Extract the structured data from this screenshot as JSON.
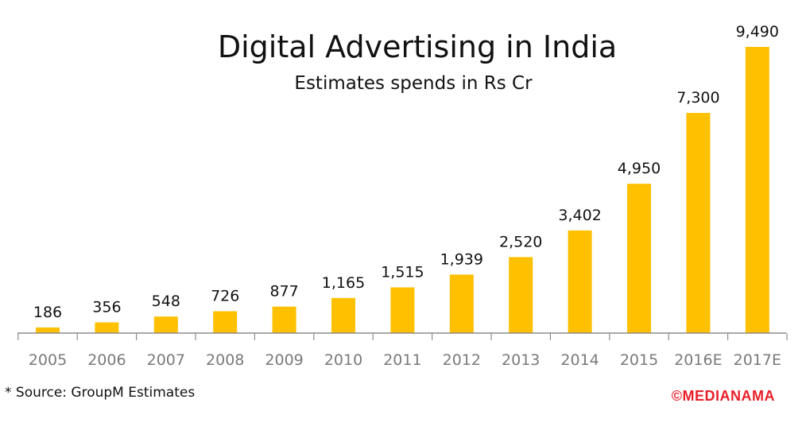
{
  "colors": {
    "bar": "#FFC000",
    "axis": "#8c8c8c",
    "brand": "#E8202A"
  },
  "source_note": "* Source: GroupM Estimates",
  "brand": "©MEDIANAMA",
  "chart_data": {
    "type": "bar",
    "title": "Digital Advertising in India",
    "subtitle": "Estimates spends in Rs Cr",
    "xlabel": "",
    "ylabel": "",
    "categories": [
      "2005",
      "2006",
      "2007",
      "2008",
      "2009",
      "2010",
      "2011",
      "2012",
      "2013",
      "2014",
      "2015",
      "2016E",
      "2017E"
    ],
    "values": [
      186,
      356,
      548,
      726,
      877,
      1165,
      1515,
      1939,
      2520,
      3402,
      4950,
      7300,
      9490
    ],
    "value_labels": [
      "186",
      "356",
      "548",
      "726",
      "877",
      "1,165",
      "1,515",
      "1,939",
      "2,520",
      "3,402",
      "4,950",
      "7,300",
      "9,490"
    ],
    "ylim": [
      0,
      9490
    ],
    "grid": false,
    "legend": "none"
  }
}
